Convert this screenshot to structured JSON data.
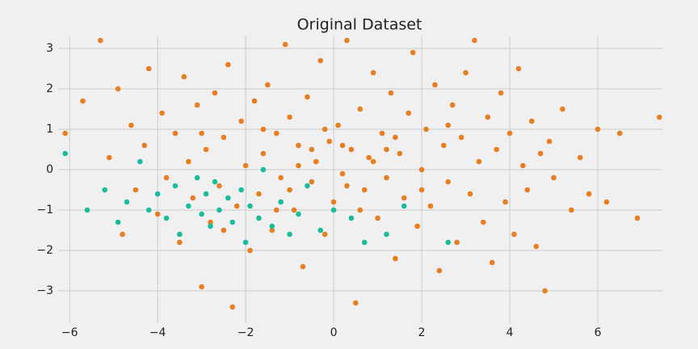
{
  "chart_data": {
    "type": "scatter",
    "title": "Original Dataset",
    "xlim": [
      -6.26,
      7.47
    ],
    "ylim": [
      -3.8,
      3.3
    ],
    "xticks": [
      {
        "value": -6,
        "label": "−6"
      },
      {
        "value": -4,
        "label": "−4"
      },
      {
        "value": -2,
        "label": "−2"
      },
      0,
      2,
      4,
      6
    ],
    "yticks": [
      {
        "value": -3,
        "label": "−3"
      },
      {
        "value": -2,
        "label": "−2"
      },
      {
        "value": -1,
        "label": "−1"
      },
      0,
      1,
      2,
      3
    ],
    "grid": true,
    "series": [
      {
        "color": "#e67e22",
        "x": [
          -6.1,
          -5.7,
          -5.3,
          -5.1,
          -4.9,
          -4.8,
          -4.6,
          -4.5,
          -4.3,
          -4.2,
          -4.0,
          -3.9,
          -3.8,
          -3.6,
          -3.5,
          -3.4,
          -3.3,
          -3.2,
          -3.1,
          -3.0,
          -2.9,
          -2.8,
          -2.7,
          -2.6,
          -2.5,
          -2.4,
          -2.3,
          -2.2,
          -2.1,
          -2.0,
          -1.9,
          -1.8,
          -1.7,
          -1.6,
          -1.5,
          -1.4,
          -1.3,
          -1.2,
          -1.1,
          -1.0,
          -0.9,
          -0.8,
          -0.7,
          -0.6,
          -0.5,
          -0.4,
          -0.3,
          -0.2,
          -0.1,
          0.0,
          0.1,
          0.2,
          0.3,
          0.4,
          0.5,
          0.6,
          0.7,
          0.8,
          0.9,
          1.0,
          1.1,
          1.2,
          1.3,
          1.4,
          1.5,
          1.6,
          1.7,
          1.8,
          1.9,
          2.0,
          2.1,
          2.2,
          2.3,
          2.4,
          2.5,
          2.6,
          2.7,
          2.8,
          2.9,
          3.0,
          3.1,
          3.2,
          3.3,
          3.4,
          3.5,
          3.6,
          3.7,
          3.8,
          3.9,
          4.0,
          4.1,
          4.2,
          4.3,
          4.4,
          4.5,
          4.6,
          4.7,
          4.8,
          4.9,
          5.0,
          5.2,
          5.4,
          5.6,
          5.8,
          6.0,
          6.2,
          6.5,
          6.9,
          7.4,
          -0.5,
          0.3,
          0.9,
          -1.0,
          1.4,
          -0.2,
          0.6,
          -1.6,
          2.0,
          -0.8,
          0.2,
          1.2,
          -1.3,
          -2.5,
          2.6,
          -3.0
        ],
        "y": [
          0.9,
          1.7,
          3.2,
          0.3,
          2.0,
          -1.6,
          1.1,
          -0.5,
          0.6,
          2.5,
          -1.1,
          1.4,
          -0.2,
          0.9,
          -1.8,
          2.3,
          0.2,
          -0.7,
          1.6,
          -2.9,
          0.5,
          -1.3,
          1.9,
          -0.4,
          0.8,
          2.6,
          -3.4,
          -0.9,
          1.2,
          0.1,
          -2.0,
          1.7,
          -0.6,
          0.4,
          2.1,
          -1.5,
          0.9,
          -0.2,
          3.1,
          1.3,
          -1.0,
          0.6,
          -2.4,
          1.8,
          -0.3,
          0.2,
          2.7,
          -1.6,
          0.7,
          -0.8,
          1.1,
          -0.1,
          3.2,
          0.5,
          -3.3,
          1.5,
          -0.5,
          0.3,
          2.4,
          -1.2,
          0.9,
          -0.2,
          1.9,
          -2.2,
          0.4,
          -0.7,
          1.4,
          2.9,
          -1.4,
          0.0,
          1.0,
          -0.9,
          2.1,
          -2.5,
          0.6,
          -0.3,
          1.6,
          -1.8,
          0.8,
          2.4,
          -0.6,
          3.2,
          0.2,
          -1.3,
          1.3,
          -2.3,
          0.5,
          1.9,
          -0.8,
          0.9,
          -1.6,
          2.5,
          0.1,
          -0.5,
          1.2,
          -1.9,
          0.4,
          -3.0,
          0.7,
          -0.2,
          1.5,
          -1.0,
          0.3,
          -0.6,
          1.0,
          -0.8,
          0.9,
          -1.2,
          1.3,
          0.5,
          -0.4,
          0.2,
          -0.5,
          0.8,
          1.0,
          -1.0,
          1.0,
          -0.5,
          0.1,
          0.6,
          0.5,
          -1.0,
          -1.5,
          1.1,
          0.9
        ]
      },
      {
        "color": "#1abc9c",
        "x": [
          -6.1,
          -5.6,
          -5.2,
          -4.9,
          -4.7,
          -4.4,
          -4.2,
          -4.0,
          -3.8,
          -3.6,
          -3.5,
          -3.3,
          -3.1,
          -3.0,
          -2.9,
          -2.8,
          -2.7,
          -2.6,
          -2.4,
          -2.3,
          -2.1,
          -2.0,
          -1.9,
          -1.7,
          -1.6,
          -1.4,
          -1.2,
          -1.0,
          -0.8,
          -0.6,
          -0.3,
          0.0,
          0.4,
          0.7,
          1.2,
          1.6,
          2.6
        ],
        "y": [
          0.4,
          -1.0,
          -0.5,
          -1.3,
          -0.8,
          0.2,
          -1.0,
          -0.6,
          -1.2,
          -0.4,
          -1.6,
          -0.9,
          -0.2,
          -1.1,
          -0.6,
          -1.4,
          -0.3,
          -1.0,
          -0.7,
          -1.3,
          -0.5,
          -1.8,
          -0.9,
          -1.2,
          0.0,
          -1.4,
          -0.8,
          -1.6,
          -1.1,
          -0.4,
          -1.5,
          -1.0,
          -1.2,
          -1.8,
          -1.6,
          -0.9,
          -1.8
        ]
      }
    ]
  }
}
